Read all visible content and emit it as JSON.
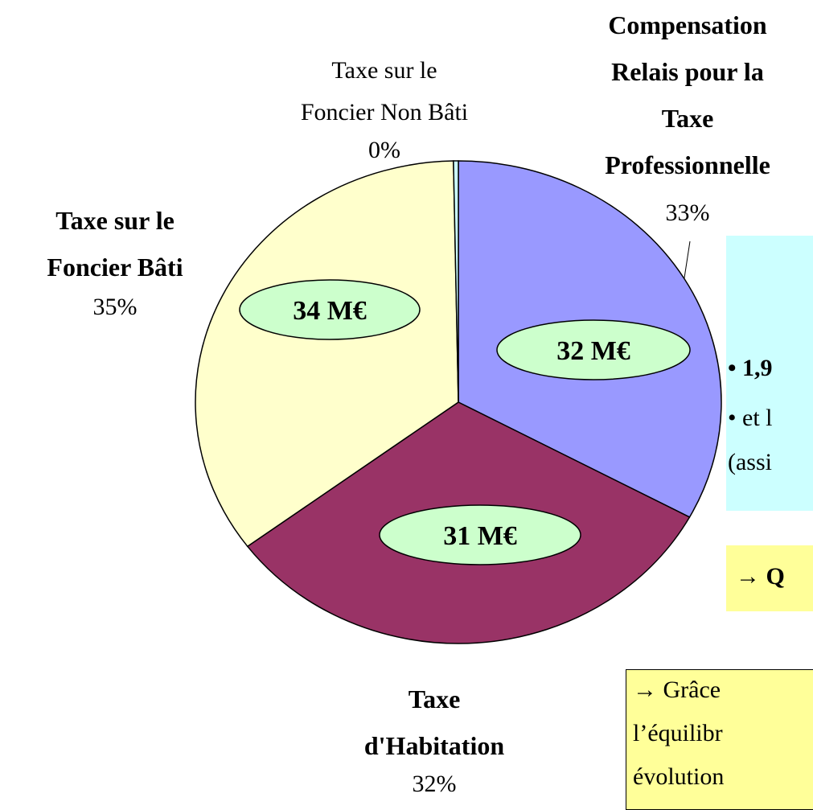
{
  "chart_data": {
    "type": "pie",
    "categories": [
      "Compensation\nRelais pour la\nTaxe\nProfessionnelle",
      "Taxe\nd'Habitation",
      "Taxe sur le\nFoncier Bâti",
      "Taxe sur le\nFoncier Non Bâti"
    ],
    "values": [
      33,
      32,
      35,
      0.3
    ],
    "value_labels": [
      "33%",
      "32%",
      "35%",
      "0%"
    ],
    "colors": [
      "#9999ff",
      "#993366",
      "#ffffcc",
      "#ccffff"
    ],
    "annotations": [
      "32 M€",
      "31 M€",
      "34 M€"
    ]
  },
  "notes": {
    "info_box": [
      "• 1,9",
      "• et l",
      "(assi"
    ],
    "highlight_box": "→ Q",
    "conclusion_box": [
      "→ Grâce",
      "l’équilibr",
      "évolution"
    ]
  }
}
